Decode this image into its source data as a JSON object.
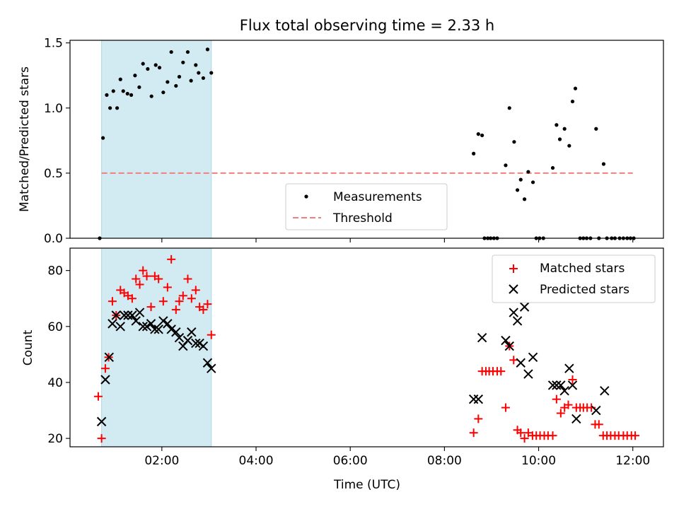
{
  "chart_data": [
    {
      "type": "scatter",
      "title": "Flux total observing time = 2.33 h",
      "ylabel": "Matched/Predicted stars",
      "xlabel": "",
      "xlim": [
        0.05,
        12.65
      ],
      "ylim": [
        0,
        1.52
      ],
      "yticks": [
        0.0,
        0.5,
        1.0,
        1.5
      ],
      "ytick_labels": [
        "0.0",
        "0.5",
        "1.0",
        "1.5"
      ],
      "xticks": [
        2,
        4,
        6,
        8,
        10,
        12
      ],
      "grid": false,
      "legend": "bottom-center",
      "shaded_span": {
        "x": [
          0.72,
          3.05
        ],
        "color": "#add8e6"
      },
      "threshold": {
        "name": "Threshold",
        "y": 0.5,
        "x": [
          0.72,
          12.0
        ],
        "color": "#f08080"
      },
      "series": [
        {
          "name": "Measurements",
          "color": "#000000",
          "points": [
            [
              0.68,
              0.0
            ],
            [
              0.75,
              0.77
            ],
            [
              0.83,
              1.1
            ],
            [
              0.9,
              1.0
            ],
            [
              0.97,
              1.13
            ],
            [
              1.05,
              1.0
            ],
            [
              1.12,
              1.22
            ],
            [
              1.18,
              1.13
            ],
            [
              1.27,
              1.11
            ],
            [
              1.35,
              1.1
            ],
            [
              1.43,
              1.25
            ],
            [
              1.52,
              1.16
            ],
            [
              1.6,
              1.34
            ],
            [
              1.7,
              1.3
            ],
            [
              1.78,
              1.09
            ],
            [
              1.87,
              1.33
            ],
            [
              1.95,
              1.31
            ],
            [
              2.03,
              1.12
            ],
            [
              2.12,
              1.2
            ],
            [
              2.2,
              1.43
            ],
            [
              2.3,
              1.17
            ],
            [
              2.37,
              1.24
            ],
            [
              2.45,
              1.35
            ],
            [
              2.55,
              1.43
            ],
            [
              2.62,
              1.21
            ],
            [
              2.72,
              1.33
            ],
            [
              2.78,
              1.27
            ],
            [
              2.88,
              1.23
            ],
            [
              2.97,
              1.45
            ],
            [
              3.05,
              1.27
            ],
            [
              8.62,
              0.65
            ],
            [
              8.72,
              0.8
            ],
            [
              8.8,
              0.79
            ],
            [
              8.85,
              0.0
            ],
            [
              8.92,
              0.0
            ],
            [
              8.98,
              0.0
            ],
            [
              9.05,
              0.0
            ],
            [
              9.12,
              0.0
            ],
            [
              9.3,
              0.56
            ],
            [
              9.38,
              1.0
            ],
            [
              9.48,
              0.74
            ],
            [
              9.55,
              0.37
            ],
            [
              9.62,
              0.45
            ],
            [
              9.7,
              0.3
            ],
            [
              9.78,
              0.51
            ],
            [
              9.88,
              0.43
            ],
            [
              9.95,
              0.0
            ],
            [
              10.02,
              0.0
            ],
            [
              10.1,
              0.0
            ],
            [
              10.3,
              0.54
            ],
            [
              10.38,
              0.87
            ],
            [
              10.45,
              0.76
            ],
            [
              10.55,
              0.84
            ],
            [
              10.65,
              0.71
            ],
            [
              10.72,
              1.05
            ],
            [
              10.78,
              1.15
            ],
            [
              10.88,
              0.0
            ],
            [
              10.95,
              0.0
            ],
            [
              11.02,
              0.0
            ],
            [
              11.1,
              0.0
            ],
            [
              11.22,
              0.84
            ],
            [
              11.28,
              0.0
            ],
            [
              11.38,
              0.57
            ],
            [
              11.45,
              0.0
            ],
            [
              11.55,
              0.0
            ],
            [
              11.62,
              0.0
            ],
            [
              11.72,
              0.0
            ],
            [
              11.8,
              0.0
            ],
            [
              11.88,
              0.0
            ],
            [
              11.95,
              0.0
            ],
            [
              12.02,
              0.0
            ]
          ]
        }
      ]
    },
    {
      "type": "scatter",
      "title": "",
      "ylabel": "Count",
      "xlabel": "Time (UTC)",
      "xlim": [
        0.05,
        12.65
      ],
      "ylim": [
        17,
        88
      ],
      "yticks": [
        20,
        40,
        60,
        80
      ],
      "ytick_labels": [
        "20",
        "40",
        "60",
        "80"
      ],
      "xticks": [
        2,
        4,
        6,
        8,
        10,
        12
      ],
      "xtick_labels": [
        "02:00",
        "04:00",
        "06:00",
        "08:00",
        "10:00",
        "12:00"
      ],
      "grid": false,
      "legend": "top-right",
      "shaded_span": {
        "x": [
          0.72,
          3.05
        ],
        "color": "#add8e6"
      },
      "series": [
        {
          "name": "Matched stars",
          "color": "#ff0000",
          "marker": "plus",
          "points": [
            [
              0.65,
              35
            ],
            [
              0.72,
              20
            ],
            [
              0.8,
              45
            ],
            [
              0.87,
              49
            ],
            [
              0.95,
              69
            ],
            [
              1.03,
              64
            ],
            [
              1.12,
              73
            ],
            [
              1.2,
              72
            ],
            [
              1.28,
              71
            ],
            [
              1.37,
              70
            ],
            [
              1.45,
              77
            ],
            [
              1.53,
              75
            ],
            [
              1.6,
              80
            ],
            [
              1.68,
              78
            ],
            [
              1.77,
              67
            ],
            [
              1.85,
              78
            ],
            [
              1.93,
              77
            ],
            [
              2.03,
              69
            ],
            [
              2.12,
              74
            ],
            [
              2.2,
              84
            ],
            [
              2.3,
              66
            ],
            [
              2.37,
              69
            ],
            [
              2.45,
              71
            ],
            [
              2.55,
              77
            ],
            [
              2.63,
              70
            ],
            [
              2.72,
              73
            ],
            [
              2.8,
              67
            ],
            [
              2.88,
              66
            ],
            [
              2.97,
              68
            ],
            [
              3.05,
              57
            ],
            [
              8.62,
              22
            ],
            [
              8.72,
              27
            ],
            [
              8.8,
              44
            ],
            [
              8.88,
              44
            ],
            [
              8.95,
              44
            ],
            [
              9.03,
              44
            ],
            [
              9.12,
              44
            ],
            [
              9.2,
              44
            ],
            [
              9.3,
              31
            ],
            [
              9.38,
              53
            ],
            [
              9.47,
              48
            ],
            [
              9.55,
              23
            ],
            [
              9.62,
              22
            ],
            [
              9.7,
              20
            ],
            [
              9.78,
              22
            ],
            [
              9.87,
              21
            ],
            [
              9.95,
              21
            ],
            [
              10.03,
              21
            ],
            [
              10.12,
              21
            ],
            [
              10.2,
              21
            ],
            [
              10.3,
              21
            ],
            [
              10.38,
              34
            ],
            [
              10.47,
              29
            ],
            [
              10.55,
              31
            ],
            [
              10.63,
              32
            ],
            [
              10.72,
              41
            ],
            [
              10.8,
              31
            ],
            [
              10.88,
              31
            ],
            [
              10.95,
              31
            ],
            [
              11.03,
              31
            ],
            [
              11.12,
              31
            ],
            [
              11.2,
              25
            ],
            [
              11.28,
              25
            ],
            [
              11.37,
              21
            ],
            [
              11.45,
              21
            ],
            [
              11.53,
              21
            ],
            [
              11.62,
              21
            ],
            [
              11.7,
              21
            ],
            [
              11.8,
              21
            ],
            [
              11.88,
              21
            ],
            [
              11.97,
              21
            ],
            [
              12.05,
              21
            ]
          ]
        },
        {
          "name": "Predicted stars",
          "color": "#000000",
          "marker": "x",
          "points": [
            [
              0.72,
              26
            ],
            [
              0.8,
              41
            ],
            [
              0.88,
              49
            ],
            [
              0.95,
              61
            ],
            [
              1.03,
              64
            ],
            [
              1.12,
              60
            ],
            [
              1.2,
              64
            ],
            [
              1.28,
              64
            ],
            [
              1.37,
              64
            ],
            [
              1.45,
              62
            ],
            [
              1.53,
              65
            ],
            [
              1.6,
              60
            ],
            [
              1.68,
              60
            ],
            [
              1.77,
              61
            ],
            [
              1.85,
              59
            ],
            [
              1.93,
              59
            ],
            [
              2.03,
              62
            ],
            [
              2.12,
              61
            ],
            [
              2.2,
              59
            ],
            [
              2.3,
              58
            ],
            [
              2.37,
              56
            ],
            [
              2.45,
              53
            ],
            [
              2.55,
              55
            ],
            [
              2.63,
              58
            ],
            [
              2.72,
              54
            ],
            [
              2.8,
              54
            ],
            [
              2.88,
              53
            ],
            [
              2.97,
              47
            ],
            [
              3.05,
              45
            ],
            [
              8.62,
              34
            ],
            [
              8.72,
              34
            ],
            [
              8.8,
              56
            ],
            [
              9.3,
              55
            ],
            [
              9.38,
              53
            ],
            [
              9.47,
              65
            ],
            [
              9.55,
              62
            ],
            [
              9.62,
              47
            ],
            [
              9.7,
              67
            ],
            [
              9.78,
              43
            ],
            [
              9.88,
              49
            ],
            [
              10.3,
              39
            ],
            [
              10.38,
              39
            ],
            [
              10.47,
              39
            ],
            [
              10.55,
              37
            ],
            [
              10.65,
              45
            ],
            [
              10.72,
              39
            ],
            [
              10.8,
              27
            ],
            [
              11.22,
              30
            ],
            [
              11.4,
              37
            ]
          ]
        }
      ]
    }
  ]
}
